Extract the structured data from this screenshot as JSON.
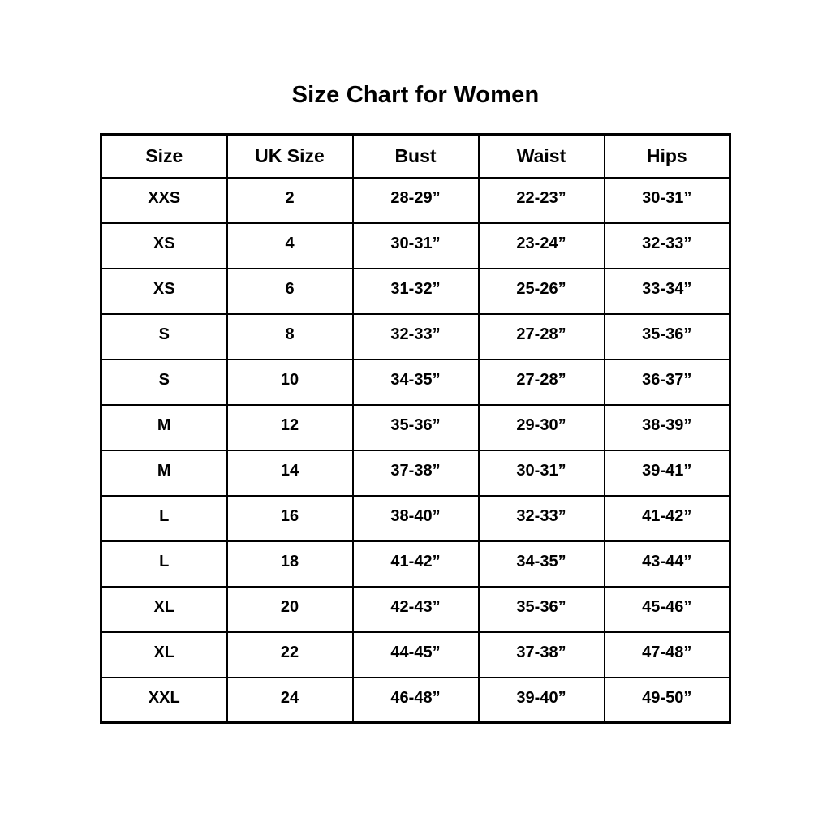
{
  "page": {
    "title": "Size Chart for Women"
  },
  "colors": {
    "background": "#ffffff",
    "text": "#000000",
    "border": "#000000"
  },
  "chart_data": {
    "type": "table",
    "title": "Size Chart for Women",
    "headers": [
      "Size",
      "UK Size",
      "Bust",
      "Waist",
      "Hips"
    ],
    "rows": [
      [
        "XXS",
        "2",
        "28-29”",
        "22-23”",
        "30-31”"
      ],
      [
        "XS",
        "4",
        "30-31”",
        "23-24”",
        "32-33”"
      ],
      [
        "XS",
        "6",
        "31-32”",
        "25-26”",
        "33-34”"
      ],
      [
        "S",
        "8",
        "32-33”",
        "27-28”",
        "35-36”"
      ],
      [
        "S",
        "10",
        "34-35”",
        "27-28”",
        "36-37”"
      ],
      [
        "M",
        "12",
        "35-36”",
        "29-30”",
        "38-39”"
      ],
      [
        "M",
        "14",
        "37-38”",
        "30-31”",
        "39-41”"
      ],
      [
        "L",
        "16",
        "38-40”",
        "32-33”",
        "41-42”"
      ],
      [
        "L",
        "18",
        "41-42”",
        "34-35”",
        "43-44”"
      ],
      [
        "XL",
        "20",
        "42-43”",
        "35-36”",
        "45-46”"
      ],
      [
        "XL",
        "22",
        "44-45”",
        "37-38”",
        "47-48”"
      ],
      [
        "XXL",
        "24",
        "46-48”",
        "39-40”",
        "49-50”"
      ]
    ]
  }
}
